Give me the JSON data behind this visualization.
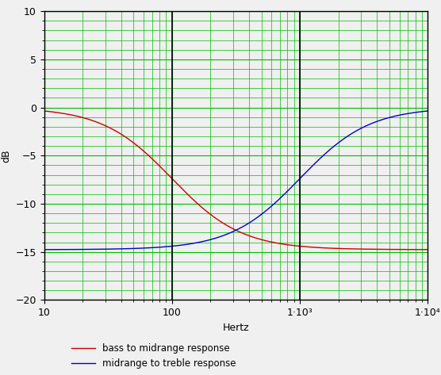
{
  "title": "",
  "xlabel": "Hertz",
  "ylabel": "dB",
  "xlim": [
    10,
    10000
  ],
  "ylim": [
    -20,
    10
  ],
  "yticks": [
    -20,
    -15,
    -10,
    -5,
    0,
    5,
    10
  ],
  "xtick_values": [
    10,
    100,
    1000,
    10000
  ],
  "red_label": "bass to midrange response",
  "blue_label": "midrange to treble response",
  "red_color": "#cc0000",
  "blue_color": "#0000cc",
  "grid_major_color": "#00bb00",
  "grid_minor_color": "#00bb00",
  "background_color": "#f0f0f0",
  "crossover_freq": 350,
  "low_db": -14.77,
  "high_db": 0.0,
  "red_slope": 1.6,
  "blue_slope": 1.6,
  "red_fc": 100,
  "blue_fc": 1000,
  "legend_fontsize": 8.5,
  "tick_fontsize": 9
}
